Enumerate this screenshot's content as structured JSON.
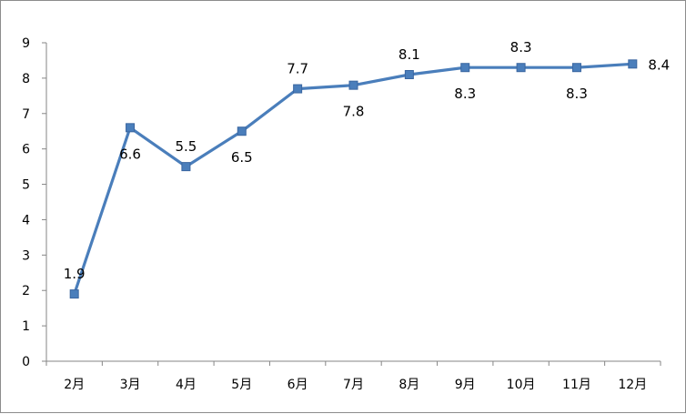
{
  "chart_data": {
    "type": "line",
    "title": "",
    "xlabel": "",
    "ylabel": "",
    "categories": [
      "2月",
      "3月",
      "4月",
      "5月",
      "6月",
      "7月",
      "8月",
      "9月",
      "10月",
      "11月",
      "12月"
    ],
    "series": [
      {
        "values": [
          1.9,
          6.6,
          5.5,
          6.5,
          7.7,
          7.8,
          8.1,
          8.3,
          8.3,
          8.3,
          8.4
        ],
        "data_labels": [
          "1.9",
          "6.6",
          "5.5",
          "6.5",
          "7.7",
          "7.8",
          "8.1",
          "8.3",
          "8.3",
          "8.3",
          "8.4"
        ],
        "label_positions": [
          "above",
          "below",
          "above",
          "below",
          "above",
          "below",
          "above",
          "below",
          "above",
          "below",
          "right"
        ],
        "color": "#4a7ebb",
        "marker": "square"
      }
    ],
    "ylim": [
      0,
      9
    ],
    "yticks": [
      "0",
      "1",
      "2",
      "3",
      "4",
      "5",
      "6",
      "7",
      "8",
      "9"
    ],
    "grid": false,
    "legend": "none"
  }
}
